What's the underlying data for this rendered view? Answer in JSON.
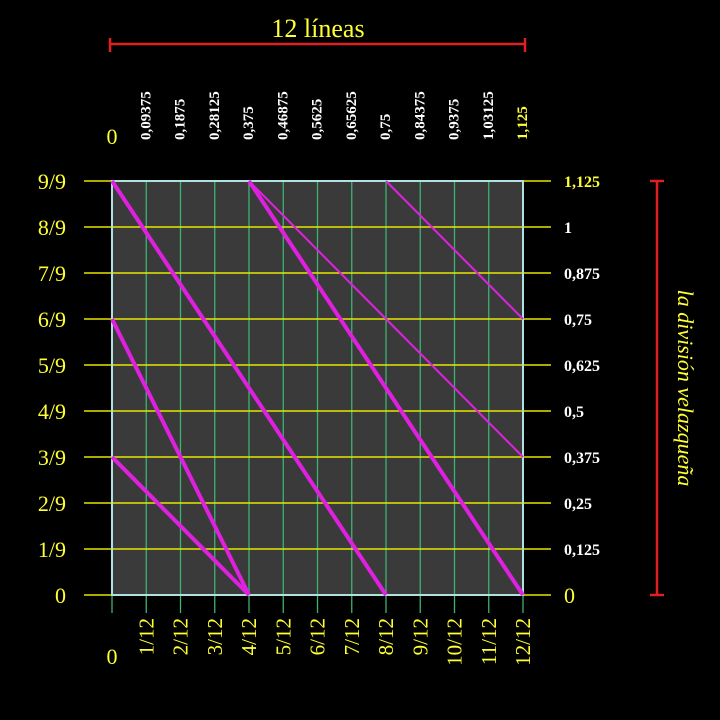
{
  "colors": {
    "background": "#000000",
    "plot_fill": "#3a3a3a",
    "vertical_line": "#3cb371",
    "horizontal_line": "#e6e600",
    "diagonal": "#e020e0",
    "yellow_text": "#ffff33",
    "white_text": "#ffffff",
    "bracket": "#e02020",
    "border": "#b0e0e0"
  },
  "top_title": "12 líneas",
  "side_title": "la división velazqueña",
  "top_zero": "0",
  "top_labels": [
    "0,09375",
    "0,1875",
    "0,28125",
    "0,375",
    "0,46875",
    "0,5625",
    "0,65625",
    "0,75",
    "0,84375",
    "0,9375",
    "1,03125",
    "1,125"
  ],
  "bottom_zero": "0",
  "bottom_labels": [
    "1/12",
    "2/12",
    "3/12",
    "4/12",
    "5/12",
    "6/12",
    "7/12",
    "8/12",
    "9/12",
    "10/12",
    "11/12",
    "12/12"
  ],
  "left_labels": [
    "9/9",
    "8/9",
    "7/9",
    "6/9",
    "5/9",
    "4/9",
    "3/9",
    "2/9",
    "1/9",
    "0"
  ],
  "right_labels": [
    "1,125",
    "1",
    "0,875",
    "0,75",
    "0,625",
    "0,5",
    "0,375",
    "0,25",
    "0,125",
    "0"
  ],
  "diagonals": [
    {
      "from": [
        0,
        9
      ],
      "to": [
        8,
        0
      ],
      "weight": "thick"
    },
    {
      "from": [
        0,
        6
      ],
      "to": [
        4,
        0
      ],
      "weight": "thick"
    },
    {
      "from": [
        0,
        3
      ],
      "to": [
        4,
        0
      ],
      "weight": "thick"
    },
    {
      "from": [
        4,
        9
      ],
      "to": [
        12,
        0
      ],
      "weight": "thick"
    },
    {
      "from": [
        4,
        9
      ],
      "to": [
        12,
        3
      ],
      "weight": "thin"
    },
    {
      "from": [
        8,
        9
      ],
      "to": [
        12,
        6
      ],
      "weight": "thin"
    }
  ]
}
